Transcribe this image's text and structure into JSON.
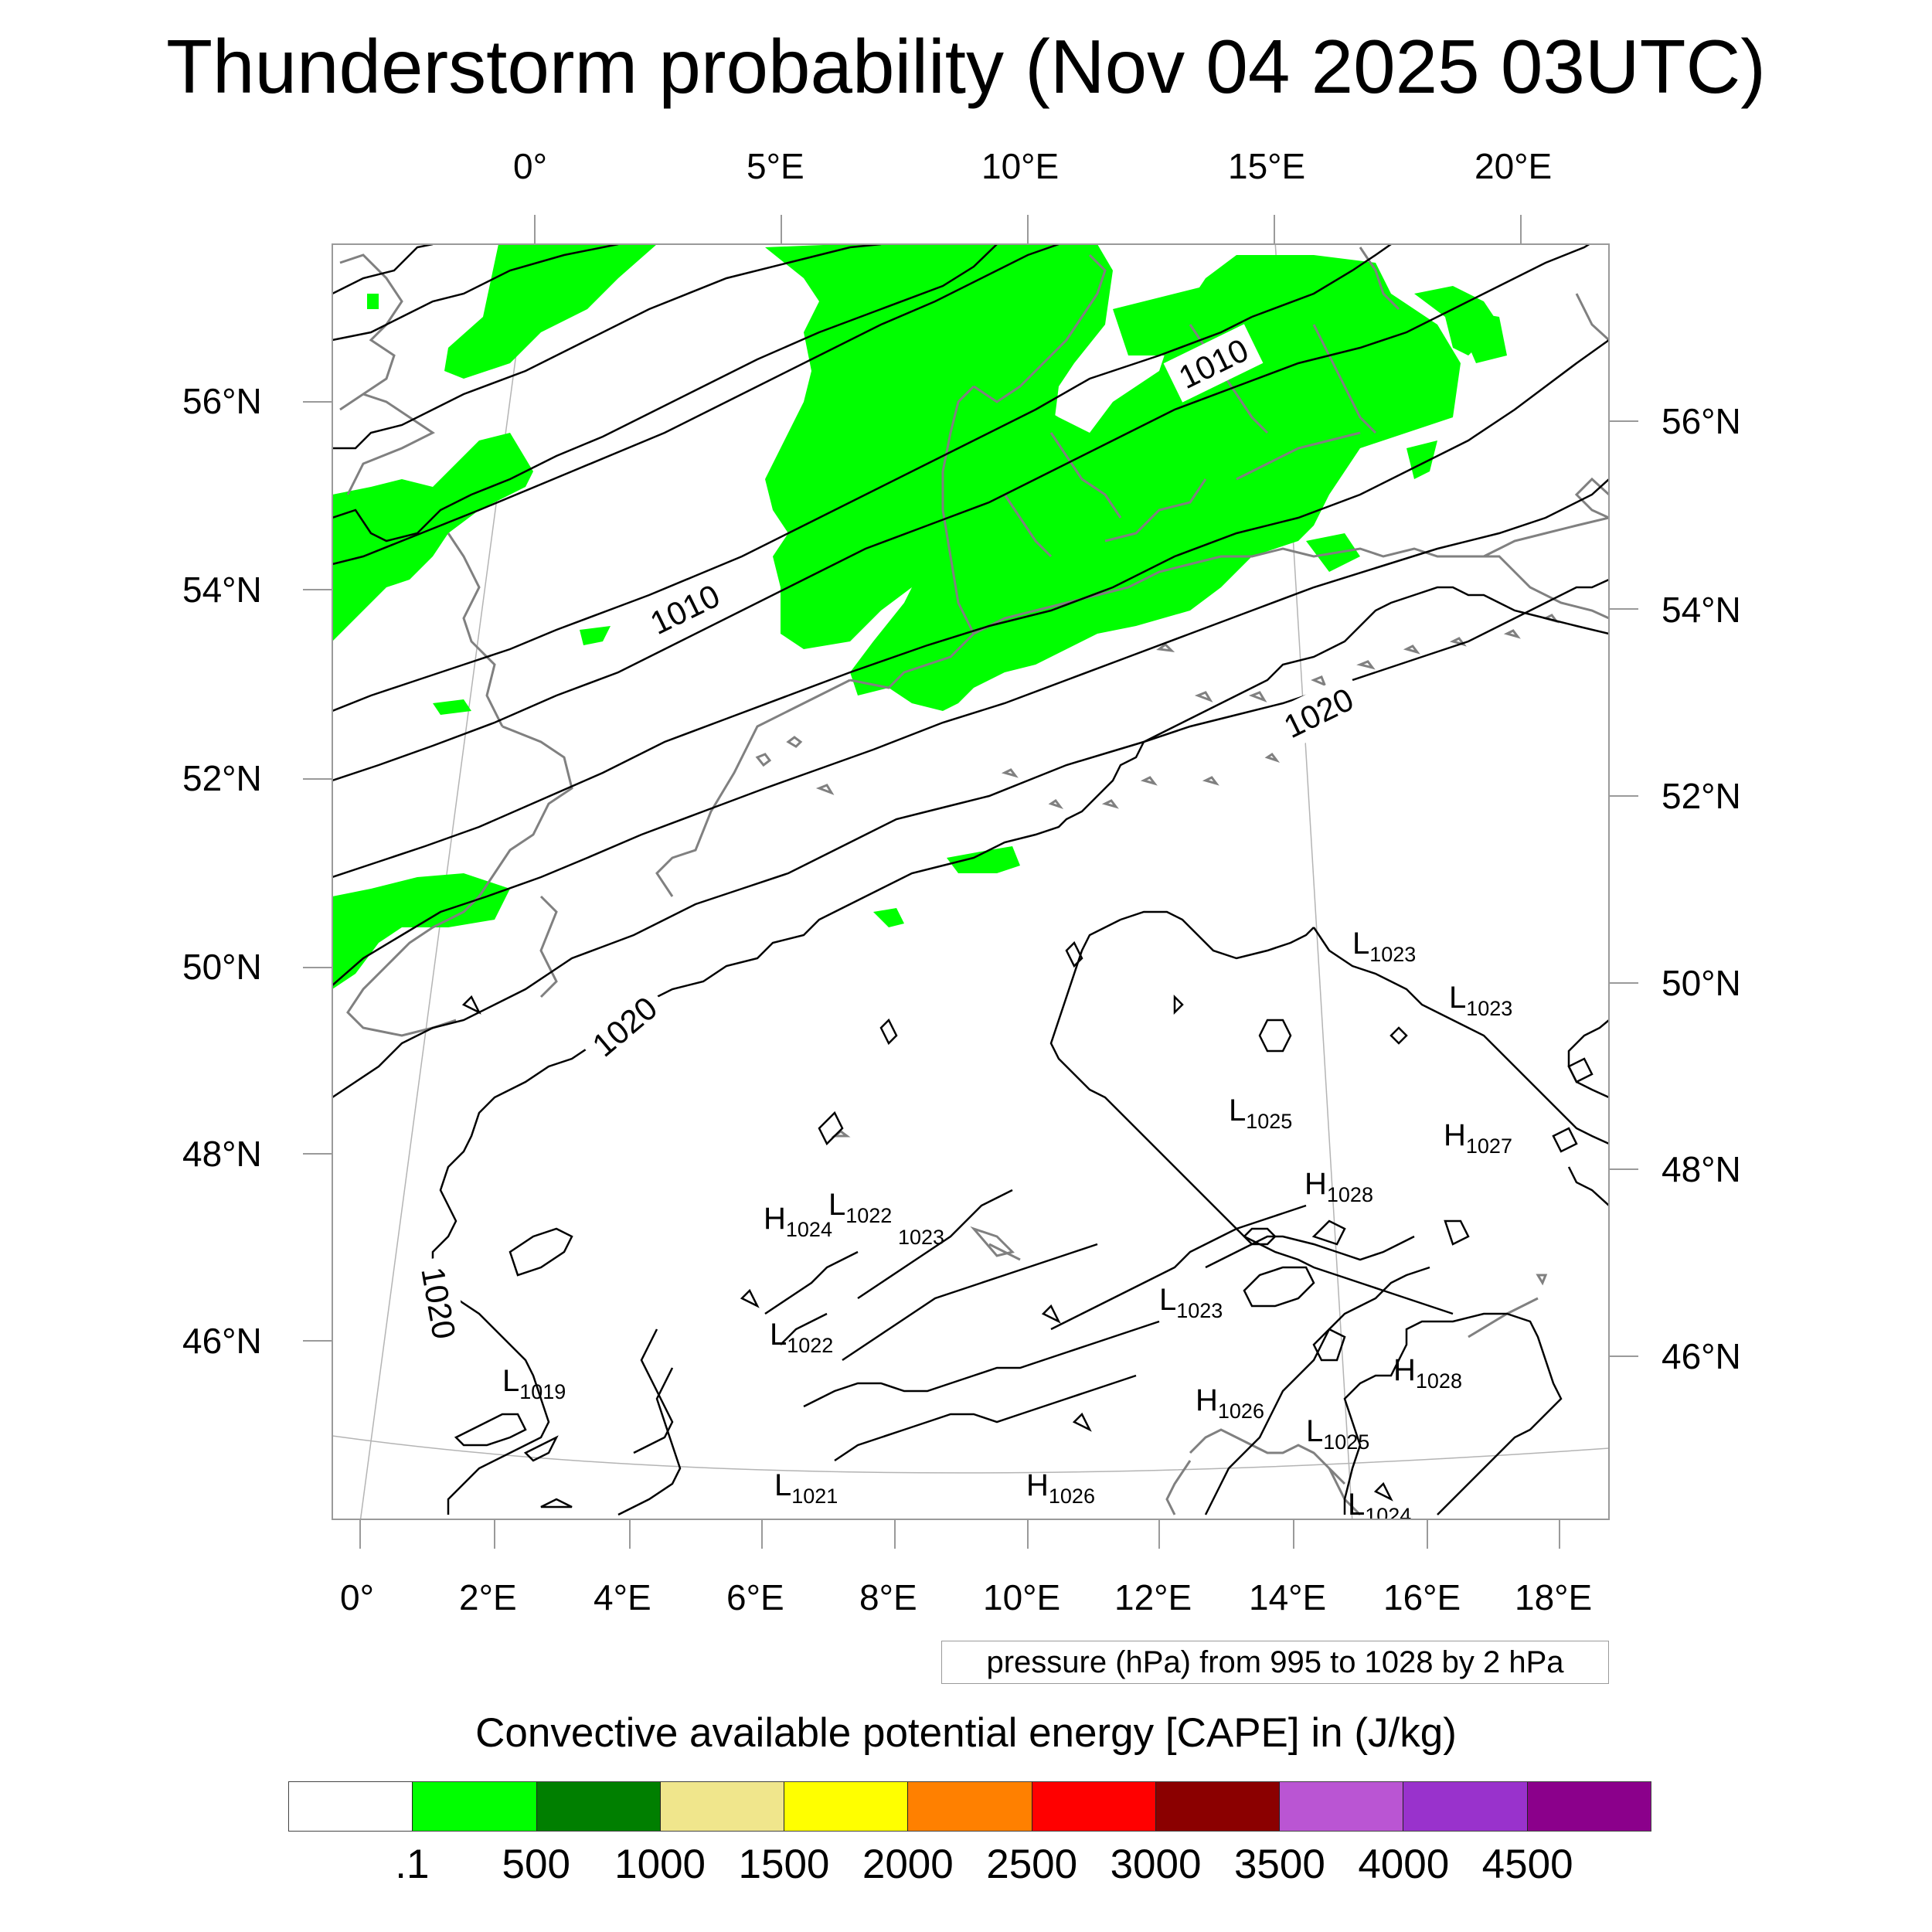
{
  "title": "Thunderstorm probability (Nov 04 2025 03UTC)",
  "top_longitudes": [
    "0°",
    "5°E",
    "10°E",
    "15°E",
    "20°E"
  ],
  "bottom_longitudes": [
    "0°",
    "2°E",
    "4°E",
    "6°E",
    "8°E",
    "10°E",
    "12°E",
    "14°E",
    "16°E",
    "18°E"
  ],
  "left_latitudes": [
    "56°N",
    "54°N",
    "52°N",
    "50°N",
    "48°N",
    "46°N"
  ],
  "right_latitudes": [
    "56°N",
    "54°N",
    "52°N",
    "50°N",
    "48°N",
    "46°N"
  ],
  "isobar_labels": [
    "1010",
    "1010",
    "1020",
    "1020",
    "1020"
  ],
  "pressure_centers": [
    {
      "letter": "L",
      "value": "1023"
    },
    {
      "letter": "L",
      "value": "1023"
    },
    {
      "letter": "L",
      "value": "1025"
    },
    {
      "letter": "H",
      "value": "1027"
    },
    {
      "letter": "H",
      "value": "1028"
    },
    {
      "letter": "H",
      "value": "1024"
    },
    {
      "letter": "L",
      "value": "1022"
    },
    {
      "letter": "",
      "value": "1023"
    },
    {
      "letter": "L",
      "value": "1023"
    },
    {
      "letter": "L",
      "value": "1022"
    },
    {
      "letter": "L",
      "value": "1019"
    },
    {
      "letter": "H",
      "value": "1028"
    },
    {
      "letter": "H",
      "value": "1026"
    },
    {
      "letter": "L",
      "value": "1025"
    },
    {
      "letter": "L",
      "value": "1021"
    },
    {
      "letter": "H",
      "value": "1026"
    },
    {
      "letter": "L",
      "value": "1024"
    }
  ],
  "pressure_info": "pressure (hPa) from 995 to 1028 by 2 hPa",
  "colorbar": {
    "title": "Convective available potential energy [CAPE] in (J/kg)",
    "colors": [
      "#ffffff",
      "#00ff00",
      "#007f00",
      "#f0e68c",
      "#ffff00",
      "#ff8000",
      "#ff0000",
      "#8b0000",
      "#ba55d3",
      "#9932cc",
      "#8b008b"
    ],
    "ticks": [
      ".1",
      "500",
      "1000",
      "1500",
      "2000",
      "2500",
      "3000",
      "3500",
      "4000",
      "4500"
    ]
  },
  "colors": {
    "cape_fill": "#00ff00",
    "coastline": "#808080",
    "isobar": "#000000",
    "graticule": "#b0b0b0"
  }
}
